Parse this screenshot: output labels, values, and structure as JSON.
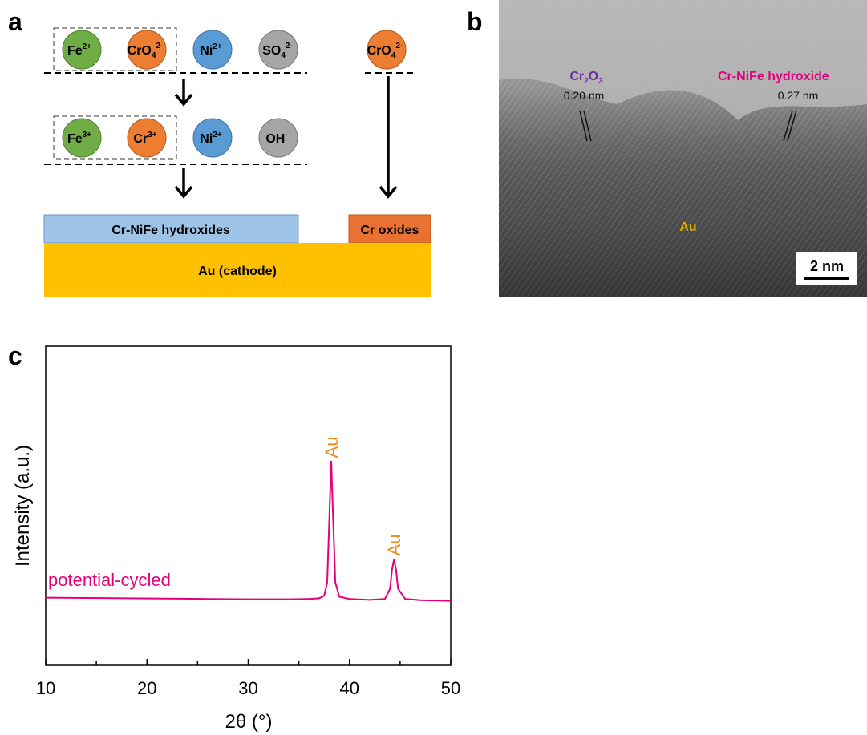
{
  "panel_labels": {
    "a": "a",
    "b": "b",
    "c": "c"
  },
  "panel_a": {
    "row1": [
      {
        "base": "Fe",
        "sup": "2+"
      },
      {
        "base": "CrO",
        "sub": "4",
        "sup": "2-"
      },
      {
        "base": "Ni",
        "sup": "2+"
      },
      {
        "base": "SO",
        "sub": "4",
        "sup": "2-"
      },
      {
        "base": "CrO",
        "sub": "4",
        "sup": "2-"
      }
    ],
    "row2": [
      {
        "base": "Fe",
        "sup": "3+"
      },
      {
        "base": "Cr",
        "sup": "3+"
      },
      {
        "base": "Ni",
        "sup": "2+"
      },
      {
        "base": "OH",
        "sup": "-"
      }
    ],
    "hydroxides": "Cr-NiFe hydroxides",
    "oxides": "Cr oxides",
    "cathode": "Au (cathode)"
  },
  "panel_b": {
    "cr2o3": {
      "base": "Cr",
      "sub1": "2",
      "mid": "O",
      "sub2": "3"
    },
    "spacing1": "0.20 nm",
    "hydroxide": "Cr-NiFe hydroxide",
    "spacing2": "0.27 nm",
    "au": "Au",
    "scale": "2 nm"
  },
  "chart_data": {
    "type": "line",
    "xlabel": "2θ (°)",
    "ylabel": "Intensity (a.u.)",
    "series_label": "potential-cycled",
    "annotations": [
      "Au",
      "Au"
    ],
    "color": "#e6007e",
    "x": [
      10,
      14,
      18,
      22,
      26,
      30,
      34,
      36,
      37,
      37.5,
      37.8,
      38.0,
      38.2,
      38.4,
      38.6,
      39,
      40,
      42,
      43.5,
      44,
      44.2,
      44.4,
      44.6,
      44.8,
      45.5,
      47,
      50
    ],
    "values": [
      21.2,
      21.1,
      21.0,
      20.9,
      20.8,
      20.7,
      20.7,
      20.8,
      21.0,
      21.8,
      26,
      45,
      64.1,
      45,
      26,
      21.5,
      20.8,
      20.5,
      20.8,
      24,
      30,
      33.2,
      30,
      24,
      20.8,
      20.4,
      20.2
    ],
    "xlim": [
      10,
      50
    ],
    "ylim": [
      0,
      100
    ],
    "xticks": [
      10,
      20,
      30,
      40,
      50
    ],
    "xminorticks": [
      15,
      25,
      35,
      45
    ]
  }
}
